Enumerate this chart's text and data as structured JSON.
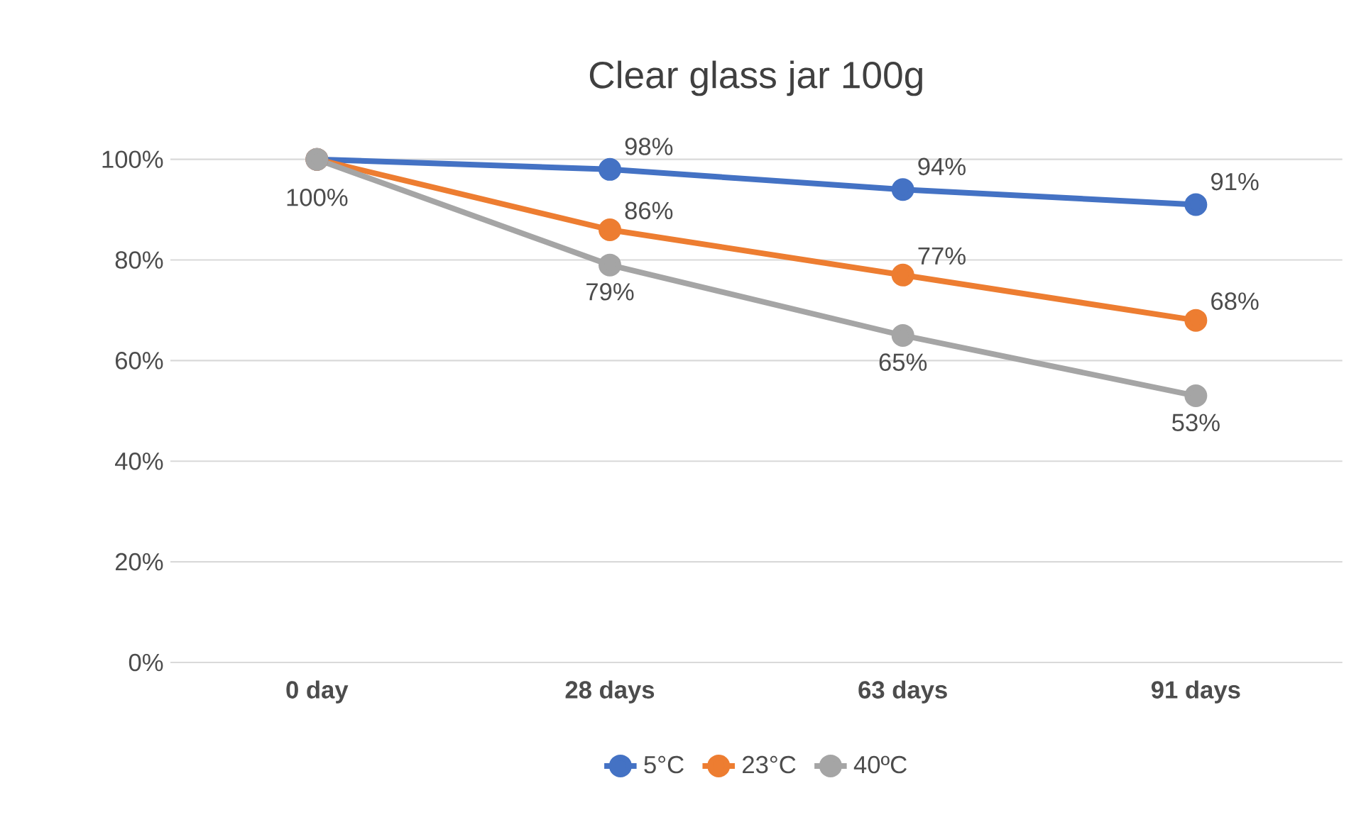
{
  "chart_data": {
    "type": "line",
    "title": "Clear glass jar 100g",
    "categories": [
      "0 day",
      "28 days",
      "63 days",
      "91 days"
    ],
    "series": [
      {
        "name": "5°C",
        "color": "#4472c4",
        "values": [
          100,
          98,
          94,
          91
        ],
        "value_labels": [
          "100%",
          "98%",
          "94%",
          "91%"
        ]
      },
      {
        "name": "23°C",
        "color": "#ed7d31",
        "values": [
          100,
          86,
          77,
          68
        ],
        "value_labels": [
          null,
          "86%",
          "77%",
          "68%"
        ]
      },
      {
        "name": "40ºC",
        "color": "#a5a5a5",
        "values": [
          100,
          79,
          65,
          53
        ],
        "value_labels": [
          null,
          "79%",
          "65%",
          "53%"
        ]
      }
    ],
    "ylim": [
      0,
      100
    ],
    "yticks": [
      {
        "value": 0,
        "label": "0%"
      },
      {
        "value": 20,
        "label": "20%"
      },
      {
        "value": 40,
        "label": "40%"
      },
      {
        "value": 60,
        "label": "60%"
      },
      {
        "value": 80,
        "label": "80%"
      },
      {
        "value": 100,
        "label": "100%"
      }
    ],
    "grid": "y",
    "legend": "bottom",
    "marker": "circle",
    "line_style": "solid"
  }
}
